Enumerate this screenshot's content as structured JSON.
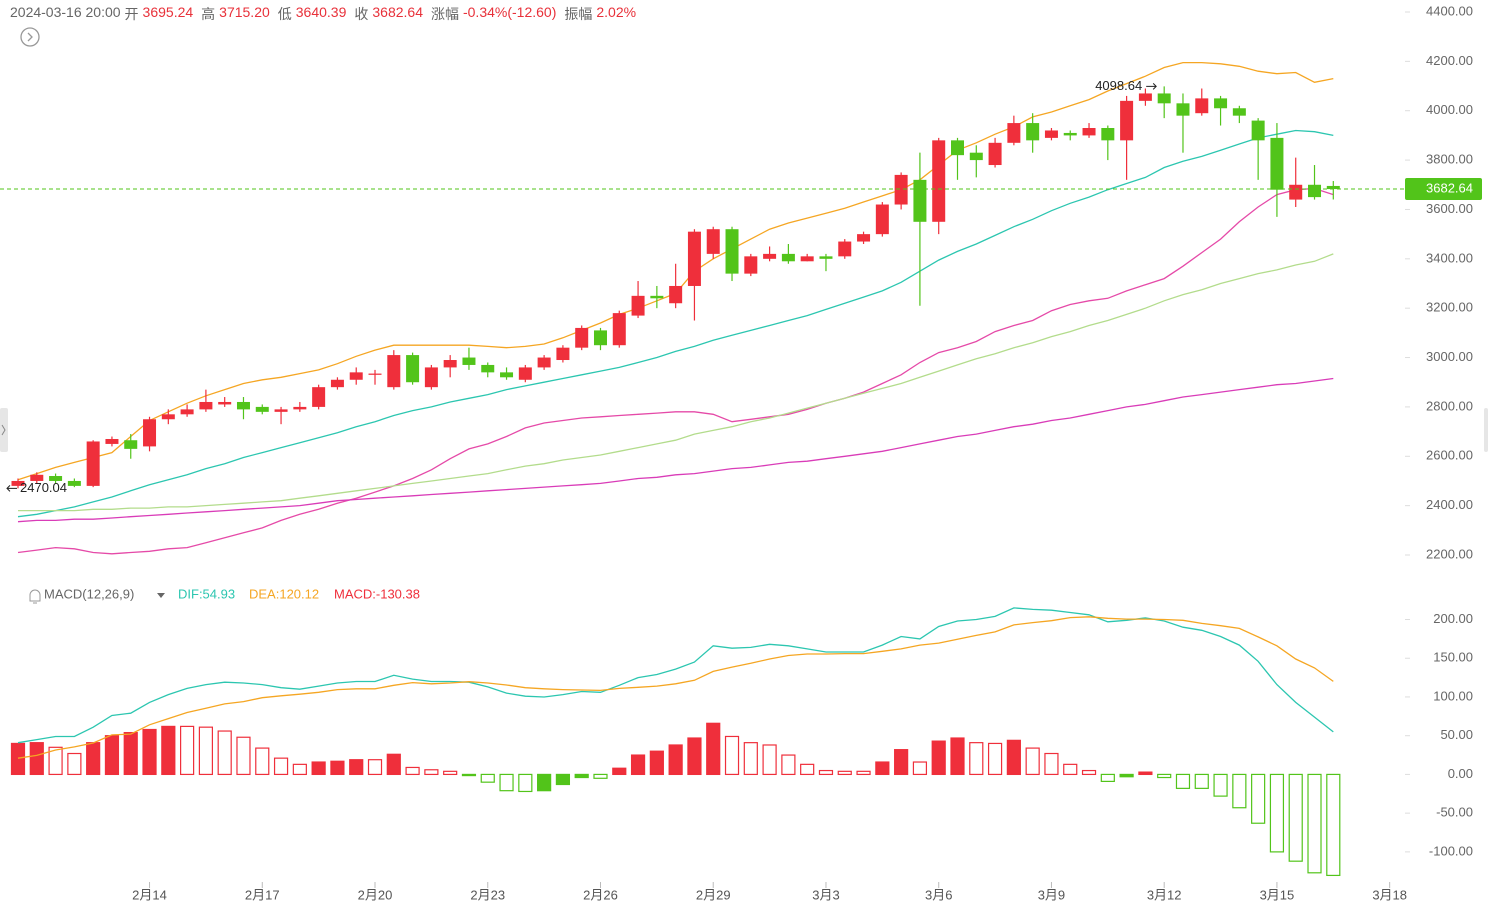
{
  "header": {
    "datetime": "2024-03-16 20:00",
    "open_label": "开",
    "open": "3695.24",
    "high_label": "高",
    "high": "3715.20",
    "low_label": "低",
    "low": "3640.39",
    "close_label": "收",
    "close": "3682.64",
    "change_label": "涨幅",
    "change": "-0.34%(-12.60)",
    "amplitude_label": "振幅",
    "amplitude": "2.02%"
  },
  "chart_data": {
    "type": "candlestick",
    "categories": [
      null,
      null,
      null,
      null,
      null,
      null,
      null,
      "2月14",
      null,
      null,
      null,
      null,
      null,
      "2月17",
      null,
      null,
      null,
      null,
      null,
      "2月20",
      null,
      null,
      null,
      null,
      null,
      "2月23",
      null,
      null,
      null,
      null,
      null,
      "2月26",
      null,
      null,
      null,
      null,
      null,
      "2月29",
      null,
      null,
      null,
      null,
      null,
      "3月3",
      null,
      null,
      null,
      null,
      null,
      "3月6",
      null,
      null,
      null,
      null,
      null,
      "3月9",
      null,
      null,
      null,
      null,
      null,
      "3月12",
      null,
      null,
      null,
      null,
      null,
      "3月15",
      null,
      null,
      null,
      null,
      null,
      "3月18",
      null
    ],
    "open": [
      2480,
      2500,
      2520,
      2500,
      2480,
      2650,
      2665,
      2640,
      2750,
      2770,
      2790,
      2810,
      2820,
      2800,
      2780,
      2790,
      2800,
      2880,
      2910,
      2930,
      2880,
      3010,
      2880,
      2960,
      3000,
      2970,
      2940,
      2910,
      2960,
      2990,
      3040,
      3110,
      3050,
      3170,
      3250,
      3220,
      3290,
      3420,
      3520,
      3340,
      3400,
      3420,
      3390,
      3410,
      3410,
      3470,
      3500,
      3620,
      3720,
      3550,
      3880,
      3830,
      3780,
      3870,
      3950,
      3890,
      3910,
      3900,
      3930,
      3880,
      4040,
      4070,
      4030,
      3990,
      4050,
      4010,
      3960,
      3890,
      3640,
      3700,
      3695.24,
      null,
      null,
      null,
      null
    ],
    "high": [
      2510,
      2535,
      2530,
      2510,
      2665,
      2680,
      2690,
      2760,
      2790,
      2810,
      2870,
      2840,
      2840,
      2810,
      2800,
      2820,
      2890,
      2920,
      2960,
      2950,
      3030,
      3020,
      2970,
      3010,
      3040,
      2980,
      2960,
      2970,
      3010,
      3050,
      3130,
      3120,
      3190,
      3310,
      3290,
      3380,
      3520,
      3530,
      3530,
      3420,
      3450,
      3460,
      3420,
      3420,
      3480,
      3510,
      3630,
      3750,
      3830,
      3890,
      3890,
      3860,
      3890,
      3980,
      3990,
      3930,
      3920,
      3950,
      3940,
      4060,
      4090,
      4098.64,
      4070,
      4090,
      4060,
      4020,
      3970,
      3950,
      3810,
      3780,
      3715.2,
      null,
      null,
      null,
      null
    ],
    "low": [
      2470.04,
      2490,
      2490,
      2475,
      2475,
      2640,
      2590,
      2620,
      2730,
      2760,
      2780,
      2800,
      2750,
      2770,
      2730,
      2780,
      2790,
      2870,
      2890,
      2890,
      2870,
      2890,
      2870,
      2920,
      2950,
      2920,
      2910,
      2900,
      2950,
      2980,
      3030,
      3030,
      3040,
      3160,
      3200,
      3200,
      3150,
      3400,
      3310,
      3330,
      3390,
      3380,
      3390,
      3350,
      3400,
      3460,
      3490,
      3600,
      3210,
      3500,
      3720,
      3730,
      3770,
      3860,
      3830,
      3880,
      3880,
      3890,
      3800,
      3720,
      4020,
      3970,
      3830,
      3980,
      3940,
      3950,
      3720,
      3570,
      3610,
      3640,
      3640.39,
      null,
      null,
      null,
      null
    ],
    "close": [
      2500,
      2525,
      2500,
      2480,
      2660,
      2670,
      2630,
      2750,
      2770,
      2790,
      2820,
      2820,
      2790,
      2780,
      2790,
      2800,
      2880,
      2910,
      2940,
      2935,
      3010,
      2900,
      2960,
      2990,
      2970,
      2940,
      2920,
      2960,
      3000,
      3040,
      3120,
      3050,
      3180,
      3250,
      3240,
      3290,
      3510,
      3520,
      3340,
      3410,
      3420,
      3390,
      3410,
      3400,
      3470,
      3500,
      3620,
      3740,
      3550,
      3880,
      3820,
      3800,
      3870,
      3950,
      3880,
      3920,
      3900,
      3930,
      3880,
      4040,
      4070,
      4030,
      3980,
      4050,
      4010,
      3980,
      3880,
      3680,
      3700,
      3650,
      3682.64,
      null,
      null,
      null,
      null
    ],
    "up_color": "#ef2f3b",
    "down_color": "#52c41a",
    "lines": [
      {
        "color": "#f5a623",
        "values": [
          2505,
          2530,
          2555,
          2575,
          2595,
          2615,
          2680,
          2745,
          2780,
          2815,
          2845,
          2870,
          2895,
          2910,
          2920,
          2935,
          2950,
          2975,
          3005,
          3030,
          3050,
          3050,
          3050,
          3050,
          3050,
          3045,
          3040,
          3045,
          3055,
          3080,
          3110,
          3140,
          3175,
          3200,
          3230,
          3260,
          3350,
          3400,
          3440,
          3480,
          3520,
          3545,
          3565,
          3585,
          3605,
          3630,
          3655,
          3680,
          3720,
          3780,
          3840,
          3870,
          3905,
          3935,
          3975,
          3995,
          4020,
          4045,
          4080,
          4110,
          4140,
          4175,
          4195,
          4195,
          4190,
          4180,
          4160,
          4150,
          4155,
          4115,
          4130,
          null,
          null,
          null,
          null
        ]
      },
      {
        "color": "#2cc6b0",
        "values": [
          2355,
          2365,
          2380,
          2395,
          2415,
          2435,
          2460,
          2485,
          2505,
          2525,
          2550,
          2570,
          2595,
          2615,
          2635,
          2655,
          2675,
          2695,
          2720,
          2740,
          2765,
          2785,
          2800,
          2820,
          2835,
          2850,
          2870,
          2885,
          2900,
          2915,
          2930,
          2945,
          2960,
          2980,
          3000,
          3025,
          3045,
          3070,
          3090,
          3110,
          3130,
          3150,
          3170,
          3195,
          3220,
          3245,
          3270,
          3305,
          3350,
          3395,
          3430,
          3460,
          3495,
          3530,
          3560,
          3595,
          3625,
          3650,
          3680,
          3705,
          3730,
          3770,
          3795,
          3815,
          3840,
          3865,
          3890,
          3905,
          3920,
          3915,
          3900,
          null,
          null,
          null,
          null
        ]
      },
      {
        "color": "#e54aa8",
        "values": [
          2210,
          2220,
          2230,
          2225,
          2210,
          2205,
          2210,
          2215,
          2225,
          2230,
          2250,
          2270,
          2290,
          2310,
          2340,
          2365,
          2385,
          2410,
          2430,
          2455,
          2480,
          2510,
          2545,
          2590,
          2630,
          2650,
          2680,
          2715,
          2735,
          2745,
          2755,
          2760,
          2765,
          2770,
          2775,
          2780,
          2780,
          2770,
          2740,
          2750,
          2760,
          2770,
          2790,
          2815,
          2835,
          2860,
          2895,
          2930,
          2980,
          3020,
          3040,
          3065,
          3105,
          3130,
          3150,
          3190,
          3215,
          3230,
          3240,
          3270,
          3295,
          3320,
          3370,
          3425,
          3480,
          3550,
          3610,
          3660,
          3680,
          3685,
          3660,
          null,
          null,
          null,
          null
        ]
      },
      {
        "color": "#b3dc8c",
        "values": [
          2380,
          2380,
          2380,
          2380,
          2385,
          2385,
          2390,
          2390,
          2395,
          2395,
          2400,
          2405,
          2410,
          2415,
          2420,
          2430,
          2440,
          2450,
          2460,
          2470,
          2480,
          2490,
          2500,
          2510,
          2520,
          2530,
          2545,
          2560,
          2570,
          2585,
          2595,
          2605,
          2620,
          2635,
          2650,
          2665,
          2690,
          2705,
          2720,
          2740,
          2755,
          2775,
          2795,
          2815,
          2835,
          2855,
          2875,
          2895,
          2920,
          2945,
          2970,
          2995,
          3015,
          3040,
          3060,
          3085,
          3105,
          3130,
          3150,
          3175,
          3200,
          3230,
          3255,
          3275,
          3300,
          3320,
          3340,
          3355,
          3375,
          3390,
          3420,
          null,
          null,
          null,
          null
        ]
      },
      {
        "color": "#d93cb8",
        "values": [
          2335,
          2340,
          2340,
          2345,
          2345,
          2350,
          2355,
          2360,
          2365,
          2370,
          2375,
          2380,
          2385,
          2390,
          2395,
          2400,
          2410,
          2420,
          2425,
          2430,
          2435,
          2440,
          2445,
          2450,
          2455,
          2460,
          2465,
          2470,
          2475,
          2480,
          2485,
          2490,
          2500,
          2510,
          2515,
          2525,
          2530,
          2540,
          2550,
          2555,
          2565,
          2575,
          2580,
          2590,
          2600,
          2610,
          2620,
          2635,
          2650,
          2665,
          2680,
          2690,
          2705,
          2720,
          2730,
          2745,
          2755,
          2770,
          2785,
          2800,
          2810,
          2825,
          2840,
          2850,
          2860,
          2870,
          2880,
          2890,
          2895,
          2905,
          2915,
          null,
          null,
          null,
          null
        ]
      }
    ],
    "ylim": [
      2200,
      4400
    ],
    "yticks": [
      {
        "value": 2200,
        "label": "2200.00"
      },
      {
        "value": 2400,
        "label": "2400.00"
      },
      {
        "value": 2600,
        "label": "2600.00"
      },
      {
        "value": 2800,
        "label": "2800.00"
      },
      {
        "value": 3000,
        "label": "3000.00"
      },
      {
        "value": 3200,
        "label": "3200.00"
      },
      {
        "value": 3400,
        "label": "3400.00"
      },
      {
        "value": 3600,
        "label": "3600.00"
      },
      {
        "value": 3800,
        "label": "3800.00"
      },
      {
        "value": 4000,
        "label": "4000.00"
      },
      {
        "value": 4200,
        "label": "4200.00"
      },
      {
        "value": 4400,
        "label": "4400.00"
      }
    ],
    "last_price_line": true,
    "last_price_color": "#52c41a",
    "macd": {
      "type": "macd",
      "title": "MACD(12,26,9)",
      "ylim": [
        -135,
        220
      ],
      "yticks": [
        {
          "value": -100,
          "label": "-100.00"
        },
        {
          "value": -50,
          "label": "-50.00"
        },
        {
          "value": 0,
          "label": "0.00"
        },
        {
          "value": 50,
          "label": "50.00"
        },
        {
          "value": 100,
          "label": "100.00"
        },
        {
          "value": 150,
          "label": "150.00"
        },
        {
          "value": 200,
          "label": "200.00"
        }
      ],
      "series": [
        {
          "legend_label": "DIF:54.93",
          "color": "#2cc6b0",
          "values": [
            41,
            45,
            49,
            49,
            61,
            76,
            79,
            93,
            103,
            111,
            116,
            119,
            118,
            116,
            112,
            110,
            114,
            118,
            120,
            120,
            128,
            123,
            120,
            120,
            119,
            113,
            105,
            101,
            100,
            103,
            107,
            106,
            115,
            125,
            129,
            136,
            145,
            166,
            163,
            164,
            168,
            166,
            162,
            158,
            158,
            158,
            167,
            178,
            175,
            191,
            198,
            200,
            204,
            215,
            213,
            212,
            209,
            206,
            197,
            199,
            202,
            198,
            190,
            186,
            178,
            167,
            146,
            116,
            93,
            74,
            54.93,
            null,
            null,
            null,
            null
          ]
        },
        {
          "legend_label": "DEA:120.12",
          "color": "#f5a623",
          "values": [
            21,
            24.5,
            31.5,
            35.5,
            40.5,
            51,
            52,
            64,
            72,
            80,
            85.5,
            91,
            94,
            99,
            101.5,
            103.5,
            106,
            109.5,
            110.5,
            110.5,
            115,
            118.5,
            117,
            118,
            119.75,
            118,
            115.5,
            112,
            110.5,
            109.5,
            109,
            108.5,
            111,
            112.5,
            114,
            117,
            121.5,
            133,
            138.5,
            143.5,
            149,
            153.5,
            155.5,
            155.5,
            156,
            156,
            159,
            162,
            167,
            169.5,
            174.5,
            179.5,
            184,
            193,
            196,
            198.5,
            202.5,
            203.5,
            201.5,
            200.5,
            200.5,
            200,
            199,
            195,
            192,
            188.5,
            177.5,
            166,
            149,
            137.5,
            120.12,
            null,
            null,
            null,
            null
          ]
        }
      ],
      "histogram": {
        "legend_label": "MACD:-130.38",
        "up_color": "#ef2f3b",
        "down_color": "#52c41a",
        "values": [
          40,
          41,
          35,
          27,
          41,
          50,
          54,
          58,
          62,
          62,
          61,
          56,
          48,
          34,
          21,
          13,
          16,
          17,
          19,
          19,
          26,
          9,
          6,
          4,
          -1.5,
          -10,
          -21,
          -22,
          -21,
          -13,
          -4,
          -5,
          8,
          25,
          30,
          38,
          47,
          66,
          49,
          41,
          38,
          25,
          13,
          5,
          4,
          4,
          16,
          32,
          16,
          43,
          47,
          41,
          40,
          44,
          34,
          27,
          13,
          5,
          -9,
          -3,
          3,
          -4,
          -18,
          -18,
          -28,
          -43,
          -63,
          -100,
          -112,
          -127,
          -130.38,
          null,
          null,
          null,
          null
        ]
      }
    }
  }
}
